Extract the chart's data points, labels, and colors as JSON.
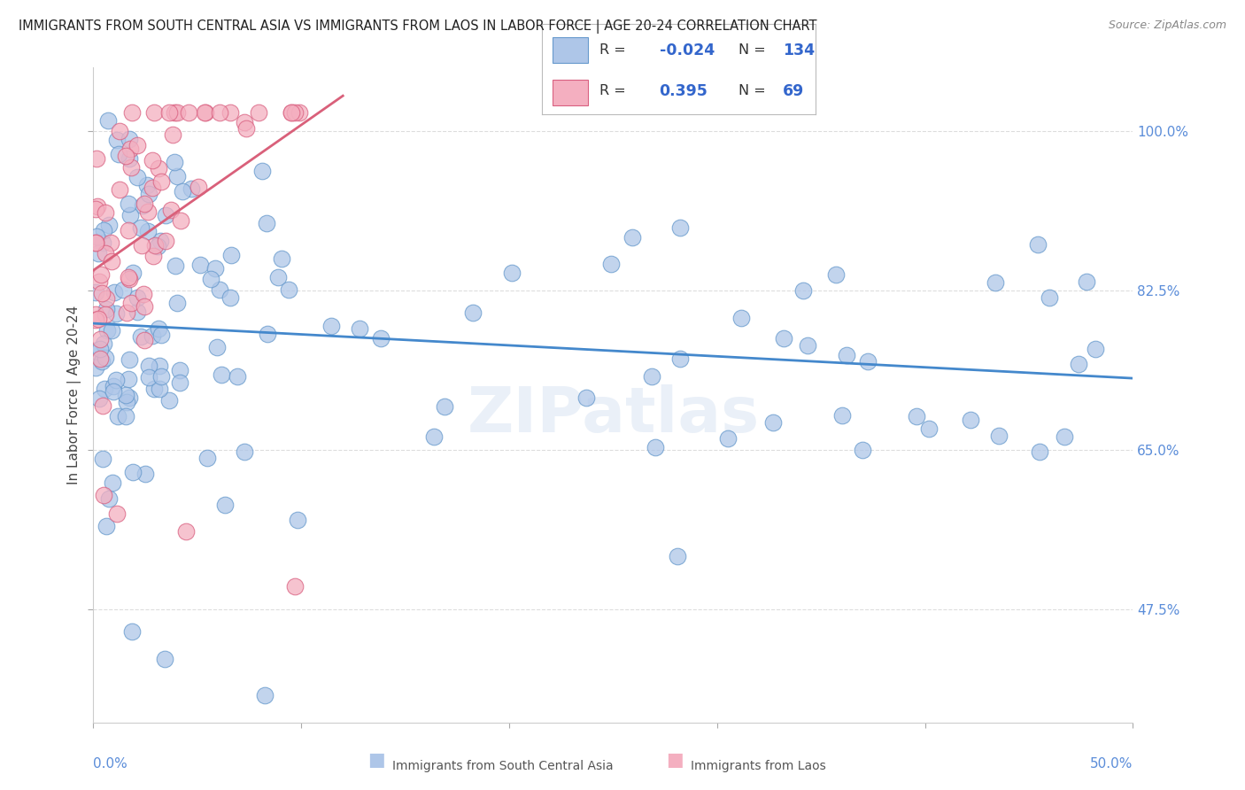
{
  "title": "IMMIGRANTS FROM SOUTH CENTRAL ASIA VS IMMIGRANTS FROM LAOS IN LABOR FORCE | AGE 20-24 CORRELATION CHART",
  "source": "Source: ZipAtlas.com",
  "ylabel": "In Labor Force | Age 20-24",
  "ytick_values": [
    0.475,
    0.65,
    0.825,
    1.0
  ],
  "ytick_labels": [
    "47.5%",
    "65.0%",
    "82.5%",
    "100.0%"
  ],
  "xlim": [
    0.0,
    0.5
  ],
  "ylim": [
    0.35,
    1.07
  ],
  "legend_R1": "-0.024",
  "legend_N1": "134",
  "legend_R2": "0.395",
  "legend_N2": "69",
  "series1_color": "#aec6e8",
  "series1_edge": "#6699cc",
  "series2_color": "#f4afc0",
  "series2_edge": "#d96080",
  "line1_color": "#4488cc",
  "line2_color": "#d9607a",
  "watermark": "ZIPatlas",
  "background_color": "#ffffff",
  "tick_color": "#5b8dd9",
  "grid_color": "#dddddd"
}
